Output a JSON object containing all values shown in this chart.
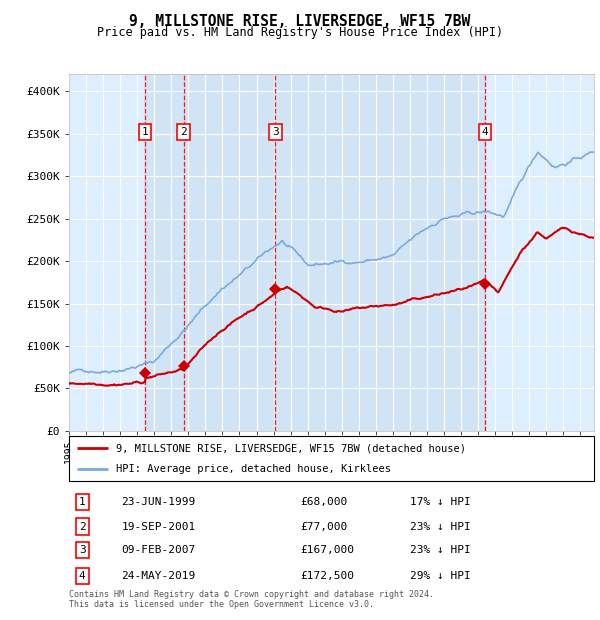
{
  "title": "9, MILLSTONE RISE, LIVERSEDGE, WF15 7BW",
  "subtitle": "Price paid vs. HM Land Registry's House Price Index (HPI)",
  "hpi_label": "HPI: Average price, detached house, Kirklees",
  "prop_label": "9, MILLSTONE RISE, LIVERSEDGE, WF15 7BW (detached house)",
  "footer1": "Contains HM Land Registry data © Crown copyright and database right 2024.",
  "footer2": "This data is licensed under the Open Government Licence v3.0.",
  "hpi_color": "#7aaadd",
  "prop_color": "#cc0000",
  "transactions": [
    {
      "num": 1,
      "date": "23-JUN-1999",
      "year": 1999.47,
      "price": 68000,
      "pct": "17% ↓ HPI"
    },
    {
      "num": 2,
      "date": "19-SEP-2001",
      "year": 2001.72,
      "price": 77000,
      "pct": "23% ↓ HPI"
    },
    {
      "num": 3,
      "date": "09-FEB-2007",
      "year": 2007.11,
      "price": 167000,
      "pct": "23% ↓ HPI"
    },
    {
      "num": 4,
      "date": "24-MAY-2019",
      "year": 2019.39,
      "price": 172500,
      "pct": "29% ↓ HPI"
    }
  ],
  "ylim": [
    0,
    420000
  ],
  "yticks": [
    0,
    50000,
    100000,
    150000,
    200000,
    250000,
    300000,
    350000,
    400000
  ],
  "ytick_labels": [
    "£0",
    "£50K",
    "£100K",
    "£150K",
    "£200K",
    "£250K",
    "£300K",
    "£350K",
    "£400K"
  ],
  "xstart": 1995.0,
  "xend": 2025.8,
  "background_color": "#ddeeff",
  "shade_color": "#c8ddf0"
}
